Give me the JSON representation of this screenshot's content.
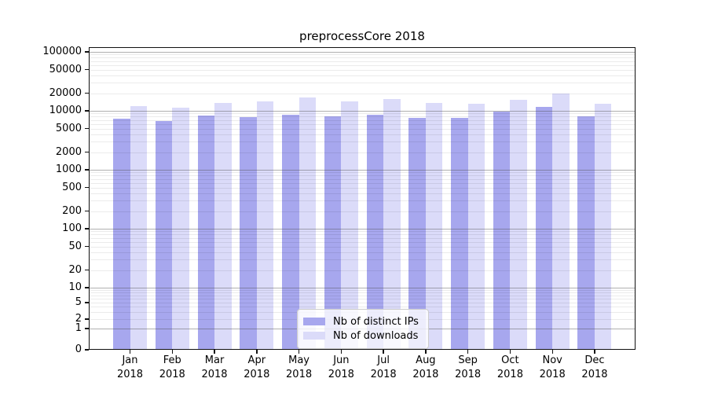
{
  "title": "preprocessCore 2018",
  "chart_data": {
    "type": "bar",
    "x_categories": [
      {
        "month": "Jan",
        "year": "2018"
      },
      {
        "month": "Feb",
        "year": "2018"
      },
      {
        "month": "Mar",
        "year": "2018"
      },
      {
        "month": "Apr",
        "year": "2018"
      },
      {
        "month": "May",
        "year": "2018"
      },
      {
        "month": "Jun",
        "year": "2018"
      },
      {
        "month": "Jul",
        "year": "2018"
      },
      {
        "month": "Aug",
        "year": "2018"
      },
      {
        "month": "Sep",
        "year": "2018"
      },
      {
        "month": "Oct",
        "year": "2018"
      },
      {
        "month": "Nov",
        "year": "2018"
      },
      {
        "month": "Dec",
        "year": "2018"
      }
    ],
    "series": [
      {
        "name": "Nb of distinct IPs",
        "color": "#a7a7ee",
        "values": [
          7300,
          6700,
          8200,
          7900,
          8700,
          8100,
          8500,
          7500,
          7600,
          9600,
          11700,
          8000
        ]
      },
      {
        "name": "Nb of downloads",
        "color": "#dbdbf9",
        "values": [
          12100,
          11200,
          13700,
          14500,
          17000,
          14300,
          15700,
          13700,
          13400,
          15600,
          19500,
          13200
        ]
      }
    ],
    "yscale": "symlog",
    "yticks": [
      0,
      1,
      2,
      5,
      10,
      20,
      50,
      100,
      200,
      500,
      1000,
      2000,
      5000,
      10000,
      20000,
      50000,
      100000
    ],
    "ylim": [
      0,
      100000
    ],
    "xlabel": "",
    "ylabel": "",
    "grid": "horizontal major and minor log gridlines",
    "legend_position": "lower center"
  }
}
